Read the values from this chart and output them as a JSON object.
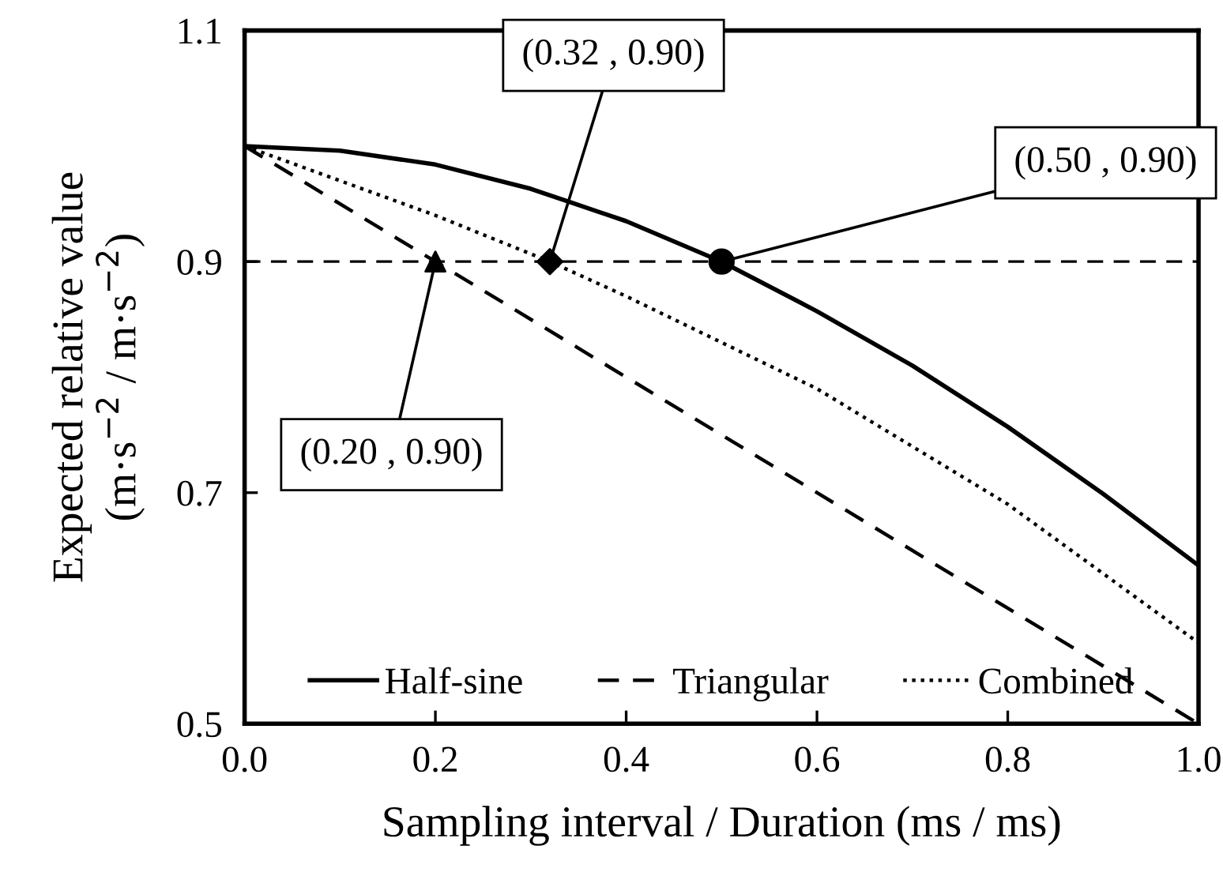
{
  "chart_data": {
    "type": "line",
    "xlabel": "Sampling interval / Duration (ms / ms)",
    "ylabel": "Expected relative value\n(m·s$^{−2}$ / m·s$^{−2}$)",
    "xlim": [
      0,
      1
    ],
    "ylim": [
      0.5,
      1.1
    ],
    "xticks": [
      {
        "value": 0,
        "label": "0.0"
      },
      0.2,
      0.4,
      0.6,
      0.8,
      {
        "value": 1,
        "label": "1.0"
      }
    ],
    "yticks": [
      0.5,
      0.7,
      0.9,
      1.1
    ],
    "grid": false,
    "legend": "bottom",
    "series": [
      {
        "name": "Half-sine",
        "color": "#000000",
        "line_style": "solid",
        "marker": "none",
        "x": [
          0,
          0.1,
          0.2,
          0.3,
          0.4,
          0.5,
          0.6,
          0.7,
          0.8,
          0.9,
          1.0
        ],
        "values": [
          1.0,
          0.996,
          0.984,
          0.963,
          0.935,
          0.9,
          0.857,
          0.81,
          0.757,
          0.699,
          0.637
        ]
      },
      {
        "name": "Triangular",
        "color": "#000000",
        "line_style": "dashed",
        "marker": "none",
        "x": [
          0,
          0.2,
          0.5,
          1.0
        ],
        "values": [
          1.0,
          0.9,
          0.75,
          0.5
        ]
      },
      {
        "name": "Combined",
        "color": "#000000",
        "line_style": "dotted",
        "marker": "none",
        "x": [
          0,
          0.1,
          0.2,
          0.32,
          0.4,
          0.5,
          0.6,
          0.7,
          0.8,
          0.9,
          1.0
        ],
        "values": [
          1.0,
          0.97,
          0.94,
          0.9,
          0.87,
          0.83,
          0.79,
          0.74,
          0.69,
          0.63,
          0.57
        ]
      },
      {
        "type": "scatter",
        "color": "#000000",
        "marker": "triangle",
        "x": [
          0.2
        ],
        "values": [
          0.9
        ]
      },
      {
        "type": "scatter",
        "color": "#000000",
        "marker": "diamond",
        "x": [
          0.32
        ],
        "values": [
          0.9
        ]
      },
      {
        "type": "scatter",
        "color": "#000000",
        "marker": "circle",
        "x": [
          0.5
        ],
        "values": [
          0.9
        ]
      }
    ],
    "ref_lines": [
      {
        "axis": "y",
        "value": 0.9,
        "color": "#000000",
        "line_style": "dashed"
      }
    ],
    "annotations": [
      {
        "text": "(0.32 , 0.90)",
        "x": 0.32,
        "y": 0.9
      },
      {
        "text": "(0.50 , 0.90)",
        "x": 0.5,
        "y": 0.9
      },
      {
        "text": "(0.20 , 0.90)",
        "x": 0.2,
        "y": 0.9
      }
    ]
  }
}
